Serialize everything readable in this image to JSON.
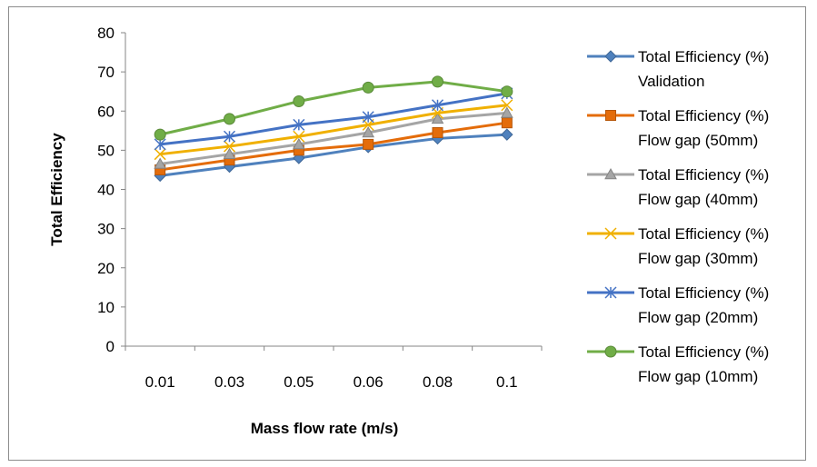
{
  "chart_data": {
    "type": "line",
    "categories": [
      "0.01",
      "0.03",
      "0.05",
      "0.06",
      "0.08",
      "0.1"
    ],
    "xlabel": "Mass flow rate (m/s)",
    "ylabel": "Total Efficiency",
    "ylim": [
      0,
      80
    ],
    "yticks": [
      "0",
      "10",
      "20",
      "30",
      "40",
      "50",
      "60",
      "70",
      "80"
    ],
    "grid": false,
    "legend_position": "right",
    "series": [
      {
        "name_line1": "Total Efficiency (%)",
        "name_line2": "Validation",
        "color": "#4f81bd",
        "marker": "diamond",
        "values": [
          43.5,
          45.8,
          48,
          50.8,
          53,
          54
        ]
      },
      {
        "name_line1": "Total Efficiency (%)",
        "name_line2": "Flow gap (50mm)",
        "color": "#e46c0a",
        "marker": "square",
        "values": [
          45,
          47.5,
          50,
          51.5,
          54.5,
          57
        ]
      },
      {
        "name_line1": "Total Efficiency (%)",
        "name_line2": "Flow gap (40mm)",
        "color": "#a5a5a5",
        "marker": "triangle",
        "values": [
          46.5,
          49,
          51.5,
          54.5,
          58,
          59.5
        ]
      },
      {
        "name_line1": "Total Efficiency (%)",
        "name_line2": "Flow gap (30mm)",
        "color": "#f0b000",
        "marker": "x",
        "values": [
          49,
          51,
          53.5,
          56.5,
          59.5,
          61.5
        ]
      },
      {
        "name_line1": "Total Efficiency (%)",
        "name_line2": "Flow gap (20mm)",
        "color": "#4472c4",
        "marker": "star",
        "values": [
          51.5,
          53.5,
          56.5,
          58.5,
          61.5,
          64.5
        ]
      },
      {
        "name_line1": "Total Efficiency (%)",
        "name_line2": "Flow gap (10mm)",
        "color": "#70ad47",
        "marker": "circle",
        "values": [
          54,
          58,
          62.5,
          66,
          67.5,
          65
        ]
      }
    ]
  }
}
